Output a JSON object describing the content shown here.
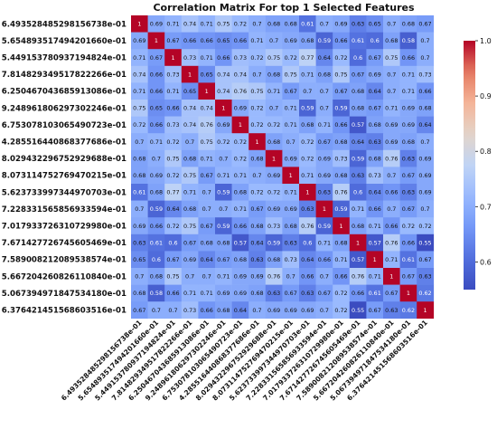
{
  "chart_data": {
    "type": "heatmap",
    "title": "Correlation Matrix For top 1 Selected Features",
    "labels": [
      "6.493528485298156738e-01",
      "5.654893517494201660e-01",
      "5.449153780937194824e-01",
      "7.814829349517822266e-01",
      "6.250467043685913086e-01",
      "9.248961806297302246e-01",
      "6.753078103065490723e-01",
      "4.285516440868377686e-01",
      "8.029432296752929688e-01",
      "8.073114752769470215e-01",
      "5.623733997344970703e-01",
      "7.228331565856933594e-01",
      "7.017933726310729980e-01",
      "7.671427726745605469e-01",
      "7.589008212089538574e-01",
      "5.667204260826110840e-01",
      "5.067394971847534180e-01",
      "6.376421451568603516e-01"
    ],
    "matrix": [
      [
        1,
        0.69,
        0.71,
        0.74,
        0.71,
        0.75,
        0.72,
        0.7,
        0.68,
        0.68,
        0.61,
        0.7,
        0.69,
        0.63,
        0.65,
        0.7,
        0.68,
        0.67
      ],
      [
        0.69,
        1,
        0.67,
        0.66,
        0.66,
        0.65,
        0.66,
        0.71,
        0.7,
        0.69,
        0.68,
        0.59,
        0.66,
        0.61,
        0.6,
        0.68,
        0.58,
        0.7
      ],
      [
        0.71,
        0.67,
        1,
        0.73,
        0.71,
        0.66,
        0.73,
        0.72,
        0.75,
        0.72,
        0.77,
        0.64,
        0.72,
        0.6,
        0.67,
        0.75,
        0.66,
        0.7
      ],
      [
        0.74,
        0.66,
        0.73,
        1,
        0.65,
        0.74,
        0.74,
        0.7,
        0.68,
        0.75,
        0.71,
        0.68,
        0.75,
        0.67,
        0.69,
        0.7,
        0.71,
        0.73
      ],
      [
        0.71,
        0.66,
        0.71,
        0.65,
        1,
        0.74,
        0.76,
        0.75,
        0.71,
        0.67,
        0.7,
        0.7,
        0.67,
        0.68,
        0.64,
        0.7,
        0.71,
        0.66
      ],
      [
        0.75,
        0.65,
        0.66,
        0.74,
        0.74,
        1,
        0.69,
        0.72,
        0.7,
        0.71,
        0.59,
        0.7,
        0.59,
        0.68,
        0.67,
        0.71,
        0.69,
        0.68
      ],
      [
        0.72,
        0.66,
        0.73,
        0.74,
        0.76,
        0.69,
        1,
        0.72,
        0.72,
        0.71,
        0.68,
        0.71,
        0.66,
        0.57,
        0.68,
        0.69,
        0.69,
        0.64
      ],
      [
        0.7,
        0.71,
        0.72,
        0.7,
        0.75,
        0.72,
        0.72,
        1,
        0.68,
        0.7,
        0.72,
        0.67,
        0.68,
        0.64,
        0.63,
        0.69,
        0.68,
        0.7
      ],
      [
        0.68,
        0.7,
        0.75,
        0.68,
        0.71,
        0.7,
        0.72,
        0.68,
        1,
        0.69,
        0.72,
        0.69,
        0.73,
        0.59,
        0.68,
        0.76,
        0.63,
        0.69
      ],
      [
        0.68,
        0.69,
        0.72,
        0.75,
        0.67,
        0.71,
        0.71,
        0.7,
        0.69,
        1,
        0.71,
        0.69,
        0.68,
        0.63,
        0.73,
        0.7,
        0.67,
        0.69
      ],
      [
        0.61,
        0.68,
        0.77,
        0.71,
        0.7,
        0.59,
        0.68,
        0.72,
        0.72,
        0.71,
        1,
        0.63,
        0.76,
        0.6,
        0.64,
        0.66,
        0.63,
        0.69
      ],
      [
        0.7,
        0.59,
        0.64,
        0.68,
        0.7,
        0.7,
        0.71,
        0.67,
        0.69,
        0.69,
        0.63,
        1,
        0.59,
        0.71,
        0.66,
        0.7,
        0.67,
        0.7
      ],
      [
        0.69,
        0.66,
        0.72,
        0.75,
        0.67,
        0.59,
        0.66,
        0.68,
        0.73,
        0.68,
        0.76,
        0.59,
        1,
        0.68,
        0.71,
        0.66,
        0.72,
        0.72
      ],
      [
        0.63,
        0.61,
        0.6,
        0.67,
        0.68,
        0.68,
        0.57,
        0.64,
        0.59,
        0.63,
        0.6,
        0.71,
        0.68,
        1,
        0.57,
        0.76,
        0.66,
        0.55
      ],
      [
        0.65,
        0.6,
        0.67,
        0.69,
        0.64,
        0.67,
        0.68,
        0.63,
        0.68,
        0.73,
        0.64,
        0.66,
        0.71,
        0.57,
        1,
        0.71,
        0.61,
        0.67
      ],
      [
        0.7,
        0.68,
        0.75,
        0.7,
        0.7,
        0.71,
        0.69,
        0.69,
        0.76,
        0.7,
        0.66,
        0.7,
        0.66,
        0.76,
        0.71,
        1,
        0.67,
        0.63
      ],
      [
        0.68,
        0.58,
        0.66,
        0.71,
        0.71,
        0.69,
        0.69,
        0.68,
        0.63,
        0.67,
        0.63,
        0.67,
        0.72,
        0.66,
        0.61,
        0.67,
        1,
        0.62
      ],
      [
        0.67,
        0.7,
        0.7,
        0.73,
        0.66,
        0.68,
        0.64,
        0.7,
        0.69,
        0.69,
        0.69,
        0.7,
        0.72,
        0.55,
        0.67,
        0.63,
        0.62,
        1
      ]
    ],
    "colormap": "coolwarm",
    "vmin": 0.55,
    "vmax": 1.0,
    "colorbar_ticks": [
      0.6,
      0.7,
      0.8,
      0.9,
      1.0
    ],
    "colorbar_tick_labels": [
      "0.6",
      "0.7",
      "0.8",
      "0.9",
      "1.0"
    ],
    "annotated": true
  }
}
